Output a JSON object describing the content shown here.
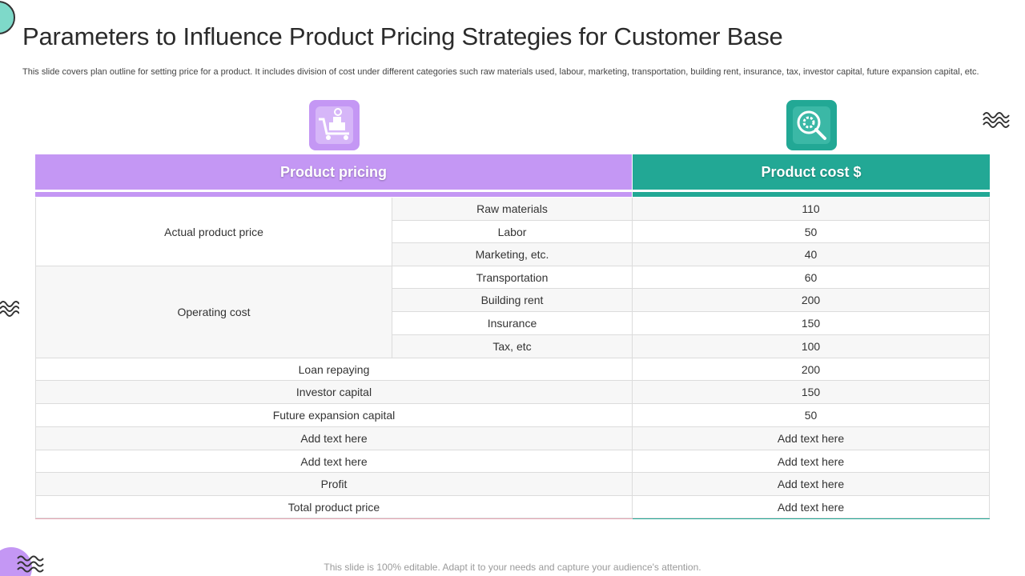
{
  "title": "Parameters to Influence Product Pricing Strategies for Customer Base",
  "subtitle": "This slide covers plan outline for setting price for a product. It includes division of cost under different categories such raw materials used, labour, marketing, transportation, building rent, insurance, tax, investor capital, future expansion capital, etc.",
  "colors": {
    "purple": "#c497f4",
    "teal": "#22a895"
  },
  "icons": {
    "left": "cart-icon",
    "right": "gear-magnifier-icon"
  },
  "table": {
    "header_left": "Product pricing",
    "header_right": "Product cost $",
    "groups": {
      "actual": "Actual product price",
      "operating": "Operating cost"
    },
    "rows": [
      {
        "label": "Raw materials",
        "value": "110"
      },
      {
        "label": "Labor",
        "value": "50"
      },
      {
        "label": "Marketing, etc.",
        "value": "40"
      },
      {
        "label": "Transportation",
        "value": "60"
      },
      {
        "label": "Building rent",
        "value": "200"
      },
      {
        "label": "Insurance",
        "value": "150"
      },
      {
        "label": "Tax, etc",
        "value": "100"
      },
      {
        "label": "Loan repaying",
        "value": "200"
      },
      {
        "label": "Investor capital",
        "value": "150"
      },
      {
        "label": "Future expansion capital",
        "value": "50"
      },
      {
        "label": "Add text here",
        "value": "Add text here"
      },
      {
        "label": "Add text here",
        "value": "Add text here"
      },
      {
        "label": "Profit",
        "value": "Add text here"
      },
      {
        "label": "Total product price",
        "value": "Add text here"
      }
    ]
  },
  "footer": "This slide is 100% editable. Adapt it to your needs and capture your audience's attention."
}
